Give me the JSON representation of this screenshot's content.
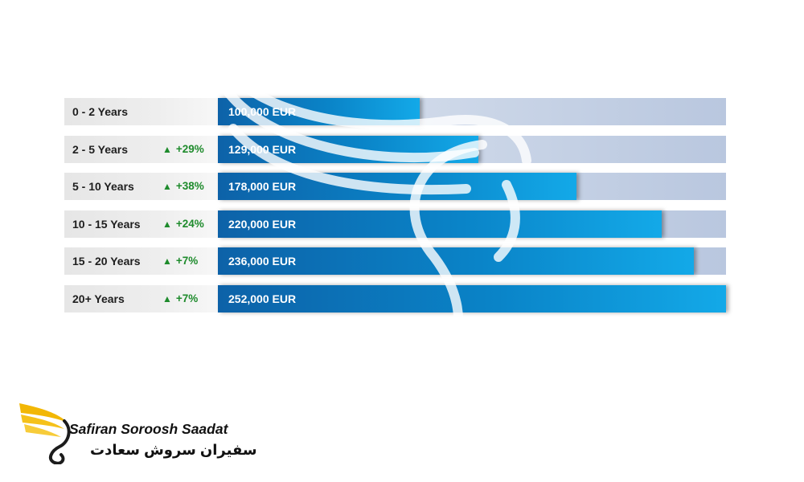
{
  "chart_data": {
    "type": "bar",
    "orientation": "horizontal",
    "categories": [
      "0 - 2 Years",
      "2 - 5 Years",
      "5 - 10 Years",
      "10 - 15 Years",
      "15 - 20 Years",
      "20+ Years"
    ],
    "values": [
      100000,
      129000,
      178000,
      220000,
      236000,
      252000
    ],
    "value_labels": [
      "100,000 EUR",
      "129,000 EUR",
      "178,000 EUR",
      "220,000 EUR",
      "236,000 EUR",
      "252,000 EUR"
    ],
    "changes": [
      "",
      "+29%",
      "+38%",
      "+24%",
      "+7%",
      "+7%"
    ],
    "xlim": [
      0,
      252000
    ],
    "unit": "EUR",
    "grid": false,
    "colors": {
      "bar": "#0a84c8",
      "track": "#c6d2e6",
      "change": "#1e8b2c",
      "label_bg": "#eeeeee"
    }
  },
  "brand": {
    "name_en": "Safiran Soroosh Saadat",
    "name_fa": "سفیران سروش سعادت",
    "logo_icon": "golden-wing-icon",
    "accent": "#f2b705"
  }
}
